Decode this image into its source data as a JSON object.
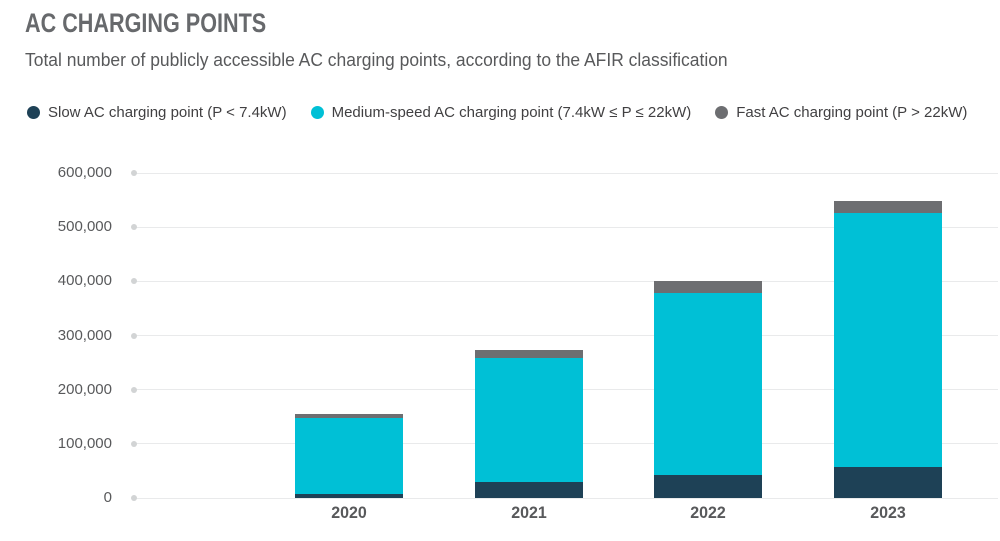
{
  "header": {
    "title": "AC CHARGING POINTS",
    "subtitle": "Total number of publicly accessible AC charging points, according to the AFIR classification"
  },
  "legend": [
    {
      "label": "Slow AC charging point (P < 7.4kW)",
      "color": "#1e4156"
    },
    {
      "label": "Medium-speed AC charging point (7.4kW ≤ P ≤ 22kW)",
      "color": "#00c0d6"
    },
    {
      "label": "Fast AC charging point (P > 22kW)",
      "color": "#6d6e71"
    }
  ],
  "colors": {
    "slow": "#1e4156",
    "medium": "#00c0d6",
    "fast": "#6d6e71",
    "gridline": "#e9eaeb",
    "axis_text": "#58595b"
  },
  "chart_data": {
    "type": "bar",
    "stacked": true,
    "title": "AC CHARGING POINTS",
    "subtitle": "Total number of publicly accessible AC charging points, according to the AFIR classification",
    "xlabel": "",
    "ylabel": "",
    "categories": [
      "2020",
      "2021",
      "2022",
      "2023"
    ],
    "series": [
      {
        "name": "Slow AC charging point (P < 7.4kW)",
        "color": "#1e4156",
        "values": [
          8000,
          30000,
          43000,
          57000
        ]
      },
      {
        "name": "Medium-speed AC charging point (7.4kW ≤ P ≤ 22kW)",
        "color": "#00c0d6",
        "values": [
          140000,
          228000,
          335000,
          469000
        ]
      },
      {
        "name": "Fast AC charging point (P > 22kW)",
        "color": "#6d6e71",
        "values": [
          8000,
          15000,
          22000,
          23000
        ]
      }
    ],
    "totals": [
      156000,
      273000,
      400000,
      549000
    ],
    "ylim": [
      0,
      600000
    ],
    "ytick_step": 100000,
    "yticks": [
      "0",
      "100,000",
      "200,000",
      "300,000",
      "400,000",
      "500,000",
      "600,000"
    ],
    "grid": true,
    "legend_position": "top"
  }
}
